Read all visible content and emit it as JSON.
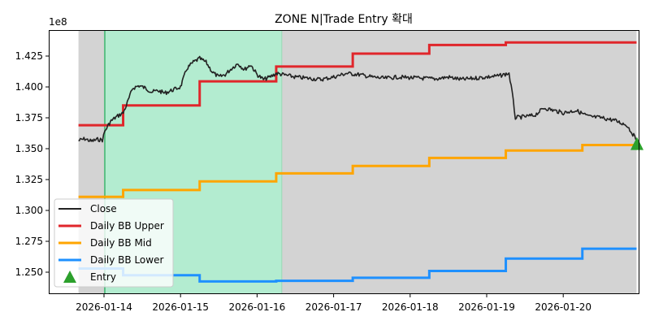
{
  "chart_data": {
    "type": "line",
    "title": "ZONE N|Trade Entry 확대",
    "xlabel": "",
    "ylabel": "",
    "y_offset_label": "1e8",
    "ylim": [
      1.2345,
      1.4455
    ],
    "y_ticks": [
      "1.250",
      "1.275",
      "1.300",
      "1.325",
      "1.350",
      "1.375",
      "1.400",
      "1.425"
    ],
    "x_ticks": [
      "2026-01-14",
      "2026-01-15",
      "2026-01-16",
      "2026-01-17",
      "2026-01-18",
      "2026-01-19",
      "2026-01-20"
    ],
    "grid": false,
    "legend_position": "lower left",
    "shaded_regions": [
      {
        "name": "gray-zone",
        "from": "2026-01-13 16:00",
        "to": "2026-01-20 23:00",
        "color": "#d3d3d3"
      },
      {
        "name": "green-zone",
        "from": "2026-01-14 00:15",
        "to": "2026-01-16 07:45",
        "color": "#b3ecd0"
      }
    ],
    "series": [
      {
        "name": "Close",
        "color": "#222222",
        "points": [
          [
            "01-13 16:00",
            1.3565
          ],
          [
            "01-13 18:00",
            1.358
          ],
          [
            "01-13 20:00",
            1.356
          ],
          [
            "01-13 22:00",
            1.3575
          ],
          [
            "01-13 23:30",
            1.357
          ],
          [
            "01-14 00:15",
            1.364
          ],
          [
            "01-14 02:00",
            1.372
          ],
          [
            "01-14 04:00",
            1.376
          ],
          [
            "01-14 06:00",
            1.379
          ],
          [
            "01-14 07:00",
            1.385
          ],
          [
            "01-14 09:00",
            1.399
          ],
          [
            "01-14 11:00",
            1.401
          ],
          [
            "01-14 13:00",
            1.399
          ],
          [
            "01-14 15:00",
            1.396
          ],
          [
            "01-14 17:00",
            1.397
          ],
          [
            "01-14 19:00",
            1.395
          ],
          [
            "01-14 21:00",
            1.397
          ],
          [
            "01-15 00:00",
            1.4
          ],
          [
            "01-15 02:00",
            1.415
          ],
          [
            "01-15 04:00",
            1.42
          ],
          [
            "01-15 06:00",
            1.423
          ],
          [
            "01-15 08:00",
            1.42
          ],
          [
            "01-15 10:00",
            1.412
          ],
          [
            "01-15 12:00",
            1.408
          ],
          [
            "01-15 14:00",
            1.41
          ],
          [
            "01-15 16:00",
            1.415
          ],
          [
            "01-15 18:00",
            1.419
          ],
          [
            "01-15 20:00",
            1.414
          ],
          [
            "01-15 22:00",
            1.418
          ],
          [
            "01-16 00:00",
            1.41
          ],
          [
            "01-16 02:00",
            1.406
          ],
          [
            "01-16 04:00",
            1.408
          ],
          [
            "01-16 06:00",
            1.411
          ],
          [
            "01-16 08:00",
            1.41
          ],
          [
            "01-16 12:00",
            1.408
          ],
          [
            "01-16 16:00",
            1.407
          ],
          [
            "01-16 20:00",
            1.406
          ],
          [
            "01-17 00:00",
            1.408
          ],
          [
            "01-17 04:00",
            1.411
          ],
          [
            "01-17 08:00",
            1.41
          ],
          [
            "01-17 12:00",
            1.408
          ],
          [
            "01-17 16:00",
            1.407
          ],
          [
            "01-17 20:00",
            1.408
          ],
          [
            "01-18 00:00",
            1.4075
          ],
          [
            "01-18 04:00",
            1.407
          ],
          [
            "01-18 08:00",
            1.4065
          ],
          [
            "01-18 12:00",
            1.408
          ],
          [
            "01-18 16:00",
            1.406
          ],
          [
            "01-18 20:00",
            1.407
          ],
          [
            "01-19 00:00",
            1.408
          ],
          [
            "01-19 04:00",
            1.409
          ],
          [
            "01-19 07:00",
            1.411
          ],
          [
            "01-19 08:00",
            1.395
          ],
          [
            "01-19 09:00",
            1.375
          ],
          [
            "01-19 12:00",
            1.376
          ],
          [
            "01-19 15:00",
            1.377
          ],
          [
            "01-19 18:00",
            1.383
          ],
          [
            "01-19 21:00",
            1.381
          ],
          [
            "01-20 00:00",
            1.379
          ],
          [
            "01-20 04:00",
            1.381
          ],
          [
            "01-20 08:00",
            1.376
          ],
          [
            "01-20 12:00",
            1.375
          ],
          [
            "01-20 16:00",
            1.373
          ],
          [
            "01-20 20:00",
            1.369
          ],
          [
            "01-20 23:00",
            1.357
          ]
        ]
      },
      {
        "name": "Daily BB Upper",
        "color": "#e0262b",
        "steps": [
          [
            "01-13 16:00",
            1.369
          ],
          [
            "01-14 06:00",
            1.385
          ],
          [
            "01-15 06:00",
            1.4045
          ],
          [
            "01-16 06:00",
            1.4165
          ],
          [
            "01-17 06:00",
            1.427
          ],
          [
            "01-18 06:00",
            1.434
          ],
          [
            "01-19 06:00",
            1.436
          ],
          [
            "01-20 23:00",
            1.436
          ]
        ]
      },
      {
        "name": "Daily BB Mid",
        "color": "#ffa500",
        "steps": [
          [
            "01-13 16:00",
            1.311
          ],
          [
            "01-14 06:00",
            1.3165
          ],
          [
            "01-15 06:00",
            1.3235
          ],
          [
            "01-16 06:00",
            1.33
          ],
          [
            "01-17 06:00",
            1.336
          ],
          [
            "01-18 06:00",
            1.3425
          ],
          [
            "01-19 06:00",
            1.3485
          ],
          [
            "01-20 06:00",
            1.353
          ],
          [
            "01-20 23:00",
            1.353
          ]
        ]
      },
      {
        "name": "Daily BB Lower",
        "color": "#1e90ff",
        "steps": [
          [
            "01-13 16:00",
            1.253
          ],
          [
            "01-14 06:00",
            1.2475
          ],
          [
            "01-15 06:00",
            1.2425
          ],
          [
            "01-16 06:00",
            1.243
          ],
          [
            "01-17 06:00",
            1.2455
          ],
          [
            "01-18 06:00",
            1.251
          ],
          [
            "01-19 06:00",
            1.261
          ],
          [
            "01-20 06:00",
            1.269
          ],
          [
            "01-20 23:00",
            1.269
          ]
        ]
      },
      {
        "name": "Entry",
        "color": "#2ca02c",
        "marker": "triangle-up",
        "points": [
          [
            "01-20 23:00",
            1.3535
          ]
        ]
      }
    ]
  },
  "legend": {
    "items": [
      {
        "label": "Close",
        "color": "#222222"
      },
      {
        "label": "Daily BB Upper",
        "color": "#e0262b"
      },
      {
        "label": "Daily BB Mid",
        "color": "#ffa500"
      },
      {
        "label": "Daily BB Lower",
        "color": "#1e90ff"
      },
      {
        "label": "Entry",
        "color": "#2ca02c"
      }
    ]
  }
}
